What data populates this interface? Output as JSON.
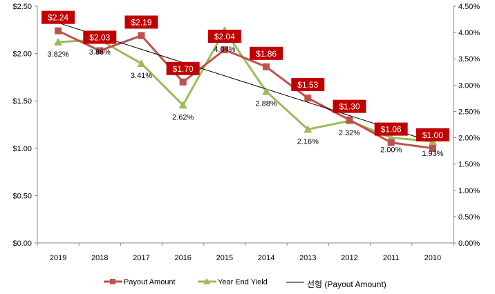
{
  "chart_data": {
    "type": "line",
    "categories": [
      "2019",
      "2018",
      "2017",
      "2016",
      "2015",
      "2014",
      "2013",
      "2012",
      "2011",
      "2010"
    ],
    "series": [
      {
        "name": "Payout Amount",
        "axis": "left",
        "color": "#C0504D",
        "marker": "square",
        "values": [
          2.24,
          2.03,
          2.19,
          1.7,
          2.04,
          1.86,
          1.53,
          1.3,
          1.06,
          1.0
        ],
        "labels": [
          "$2.24",
          "$2.03",
          "$2.19",
          "$1.70",
          "$2.04",
          "$1.86",
          "$1.53",
          "$1.30",
          "$1.06",
          "$1.00"
        ]
      },
      {
        "name": "Year End Yield",
        "axis": "right",
        "color": "#9BBB59",
        "marker": "triangle",
        "values": [
          3.82,
          3.86,
          3.41,
          2.62,
          4.04,
          2.88,
          2.16,
          2.32,
          2.0,
          1.93
        ],
        "labels": [
          "3.82%",
          "3.86%",
          "3.41%",
          "2.62%",
          "4.04%",
          "2.88%",
          "2.16%",
          "2.32%",
          "2.00%",
          "1.93%"
        ]
      }
    ],
    "trendline": {
      "name": "선형 (Payout Amount)",
      "type": "linear",
      "of": "Payout Amount",
      "color": "#000000"
    },
    "y_left": {
      "range": [
        0,
        2.5
      ],
      "ticks": [
        "$0.00",
        "$0.50",
        "$1.00",
        "$1.50",
        "$2.00",
        "$2.50"
      ]
    },
    "y_right": {
      "range": [
        0,
        4.5
      ],
      "ticks": [
        "0.00%",
        "0.50%",
        "1.00%",
        "1.50%",
        "2.00%",
        "2.50%",
        "3.00%",
        "3.50%",
        "4.00%",
        "4.50%"
      ]
    },
    "data_label_bg": "#C00000",
    "grid": false,
    "legend": "bottom"
  }
}
